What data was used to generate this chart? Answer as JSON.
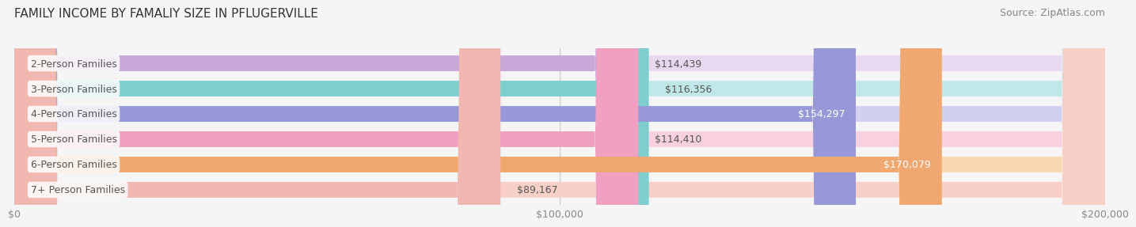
{
  "title": "FAMILY INCOME BY FAMALIY SIZE IN PFLUGERVILLE",
  "source": "Source: ZipAtlas.com",
  "categories": [
    "2-Person Families",
    "3-Person Families",
    "4-Person Families",
    "5-Person Families",
    "6-Person Families",
    "7+ Person Families"
  ],
  "values": [
    114439,
    116356,
    154297,
    114410,
    170079,
    89167
  ],
  "labels": [
    "$114,439",
    "$116,356",
    "$154,297",
    "$114,410",
    "$170,079",
    "$89,167"
  ],
  "bar_colors": [
    "#c8a8d8",
    "#7ecece",
    "#9898d8",
    "#f0a0c0",
    "#f0a870",
    "#f0b8b0"
  ],
  "bar_bg_colors": [
    "#e8d8f0",
    "#c0e8e8",
    "#d0d0f0",
    "#f8d0e0",
    "#f8d8b0",
    "#f8d0c8"
  ],
  "label_inside": [
    false,
    false,
    true,
    false,
    true,
    false
  ],
  "xlim": [
    0,
    200000
  ],
  "xticks": [
    0,
    100000,
    200000
  ],
  "xticklabels": [
    "$0",
    "$100,000",
    "$200,000"
  ],
  "background_color": "#f5f5f5",
  "bar_height": 0.62,
  "title_fontsize": 11,
  "source_fontsize": 9,
  "label_fontsize": 9,
  "category_fontsize": 9
}
